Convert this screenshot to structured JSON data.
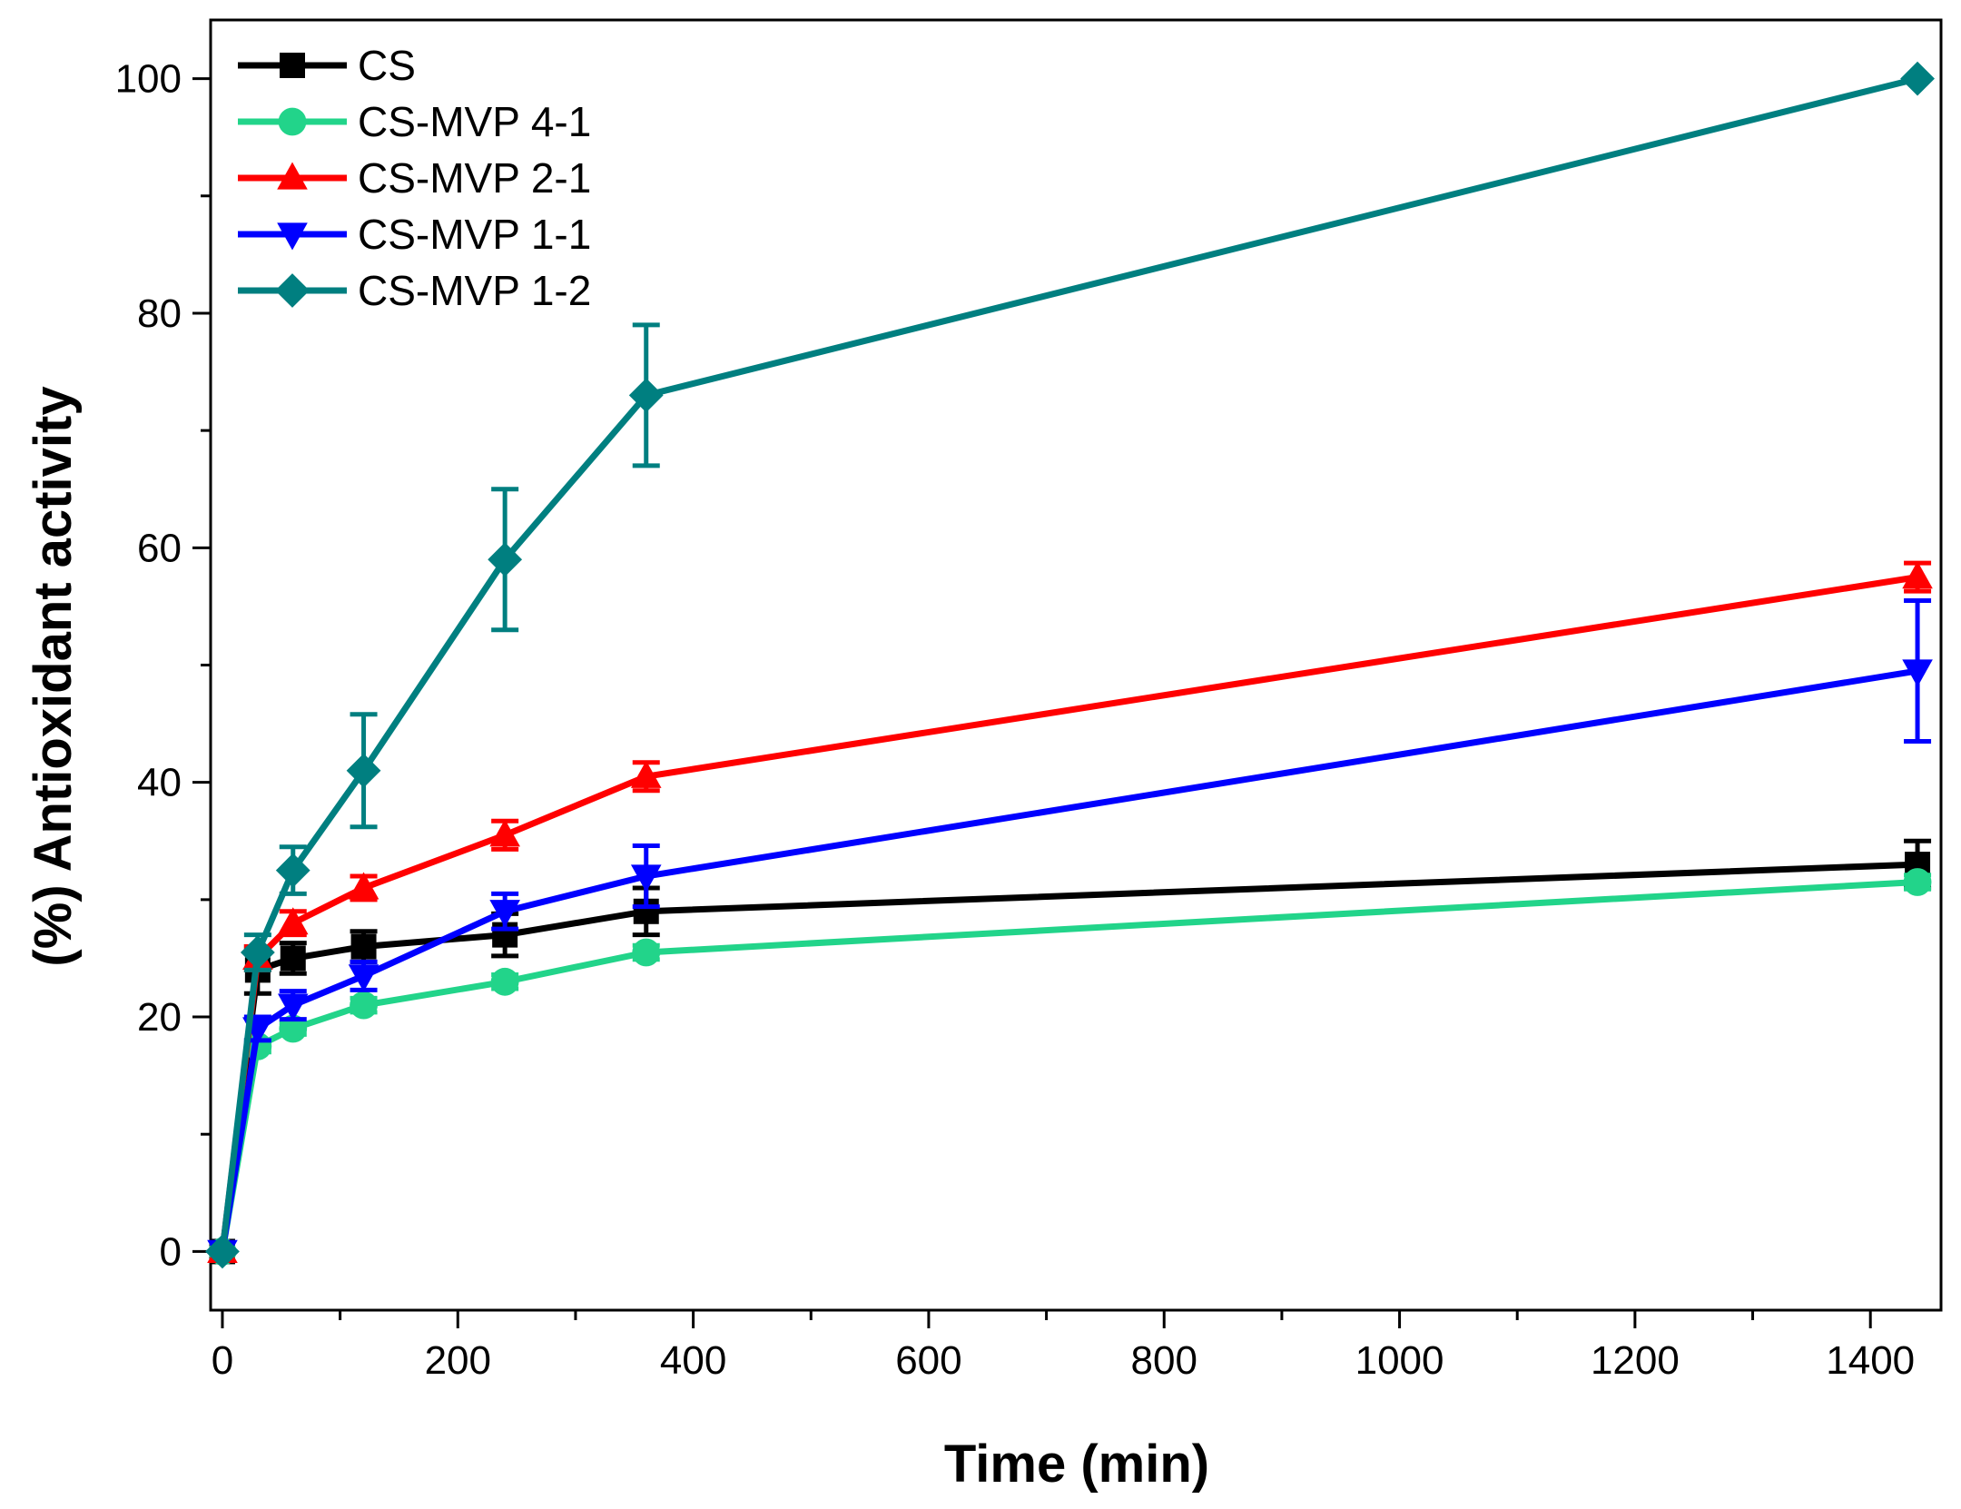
{
  "chart_data": {
    "type": "line",
    "title": "",
    "xlabel": "Time (min)",
    "ylabel": "(%) Antioxidant activity",
    "xlim": [
      -10,
      1460
    ],
    "ylim": [
      -5,
      105
    ],
    "x_ticks": [
      0,
      200,
      400,
      600,
      800,
      1000,
      1200,
      1400
    ],
    "x_tick_labels": [
      "0",
      "200",
      "400",
      "600",
      "800",
      "1000",
      "1200",
      "1400"
    ],
    "y_ticks": [
      0,
      20,
      40,
      60,
      80,
      100
    ],
    "y_tick_labels": [
      "0",
      "20",
      "40",
      "60",
      "80",
      "100"
    ],
    "x": [
      0,
      30,
      60,
      120,
      240,
      360,
      1440
    ],
    "legend_position": "top-left",
    "grid": false,
    "series": [
      {
        "name": "CS",
        "color": "#000000",
        "marker": "square",
        "values": [
          0,
          24.0,
          25.0,
          26.0,
          27.0,
          29.0,
          33.0
        ],
        "errors": [
          0,
          2.0,
          1.3,
          1.3,
          1.8,
          2.0,
          2.0
        ]
      },
      {
        "name": "CS-MVP 4-1",
        "color": "#22d48a",
        "marker": "circle",
        "values": [
          0,
          17.5,
          19.0,
          21.0,
          23.0,
          25.5,
          31.5
        ],
        "errors": [
          0,
          0.5,
          0.5,
          0.6,
          0.6,
          0.6,
          0.6
        ]
      },
      {
        "name": "CS-MVP 2-1",
        "color": "#ff0000",
        "marker": "triangle-up",
        "values": [
          0,
          25.0,
          28.0,
          31.0,
          35.5,
          40.5,
          57.5
        ],
        "errors": [
          0,
          1.0,
          1.0,
          1.0,
          1.2,
          1.2,
          1.2
        ]
      },
      {
        "name": "CS-MVP 1-1",
        "color": "#0000ff",
        "marker": "triangle-down",
        "values": [
          0,
          19.0,
          21.0,
          23.5,
          29.0,
          32.0,
          49.5
        ],
        "errors": [
          0,
          1.0,
          1.2,
          1.2,
          1.5,
          2.6,
          6.0
        ]
      },
      {
        "name": "CS-MVP 1-2",
        "color": "#007f80",
        "marker": "diamond",
        "values": [
          0,
          25.5,
          32.5,
          41.0,
          59.0,
          73.0,
          100.0
        ],
        "errors": [
          0,
          1.5,
          2.0,
          4.8,
          6.0,
          6.0,
          0
        ]
      }
    ]
  }
}
